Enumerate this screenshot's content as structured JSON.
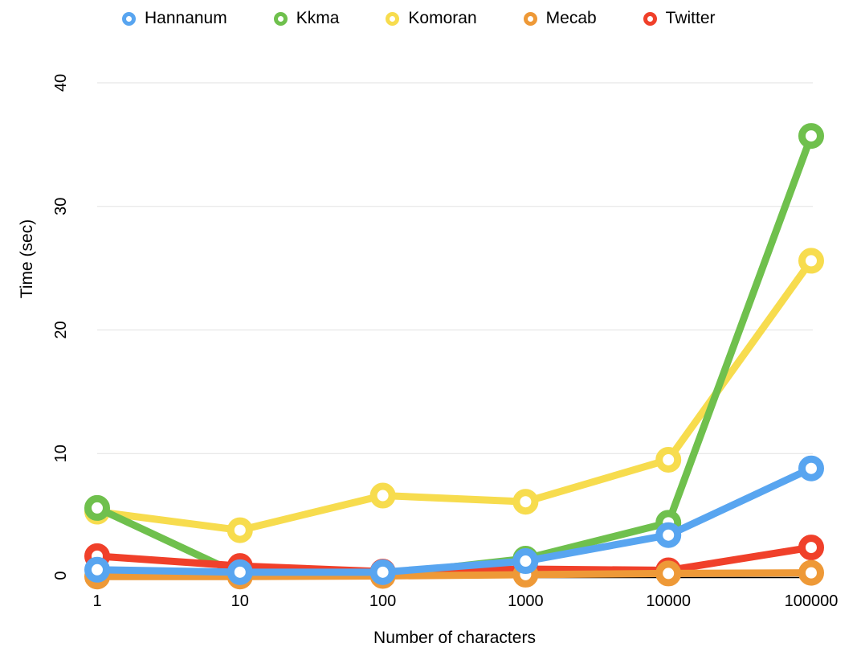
{
  "chart_data": {
    "type": "line",
    "title": "",
    "xlabel": "Number of characters",
    "ylabel": "Time (sec)",
    "x_categories": [
      "1",
      "10",
      "100",
      "1000",
      "10000",
      "100000"
    ],
    "x_scale": "log-categorical",
    "ylim": [
      0,
      40
    ],
    "yticks": [
      0,
      10,
      20,
      30,
      40
    ],
    "grid": "horizontal-only",
    "grid_color": "#e2e2e2",
    "axis_color": "#000000",
    "marker_style": "ring",
    "legend_position": "top",
    "series": [
      {
        "name": "Hannanum",
        "color": "#58a5f0",
        "values": [
          0.6,
          0.4,
          0.4,
          1.3,
          3.4,
          8.8
        ]
      },
      {
        "name": "Kkma",
        "color": "#6fc04d",
        "values": [
          5.6,
          0.2,
          0.2,
          1.5,
          4.4,
          35.7
        ]
      },
      {
        "name": "Komoran",
        "color": "#f7dc4e",
        "values": [
          5.3,
          3.8,
          6.6,
          6.1,
          9.5,
          25.6
        ]
      },
      {
        "name": "Mecab",
        "color": "#ee9937",
        "values": [
          0.05,
          0.05,
          0.1,
          0.2,
          0.3,
          0.35
        ]
      },
      {
        "name": "Twitter",
        "color": "#f0402a",
        "values": [
          1.7,
          0.9,
          0.45,
          0.65,
          0.55,
          2.4
        ]
      }
    ],
    "z_order": [
      "Komoran",
      "Kkma",
      "Twitter",
      "Mecab",
      "Hannanum"
    ]
  }
}
